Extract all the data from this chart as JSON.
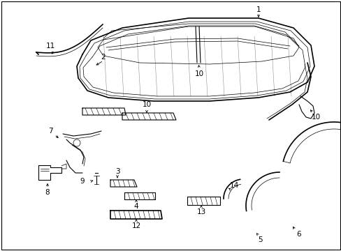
{
  "background_color": "#ffffff",
  "border_color": "#000000",
  "line_color": "#000000",
  "figsize": [
    4.89,
    3.6
  ],
  "dpi": 100,
  "lw_thin": 0.5,
  "lw_med": 0.8,
  "lw_thick": 1.2,
  "lw_xthick": 1.8,
  "fontsize": 7.5
}
